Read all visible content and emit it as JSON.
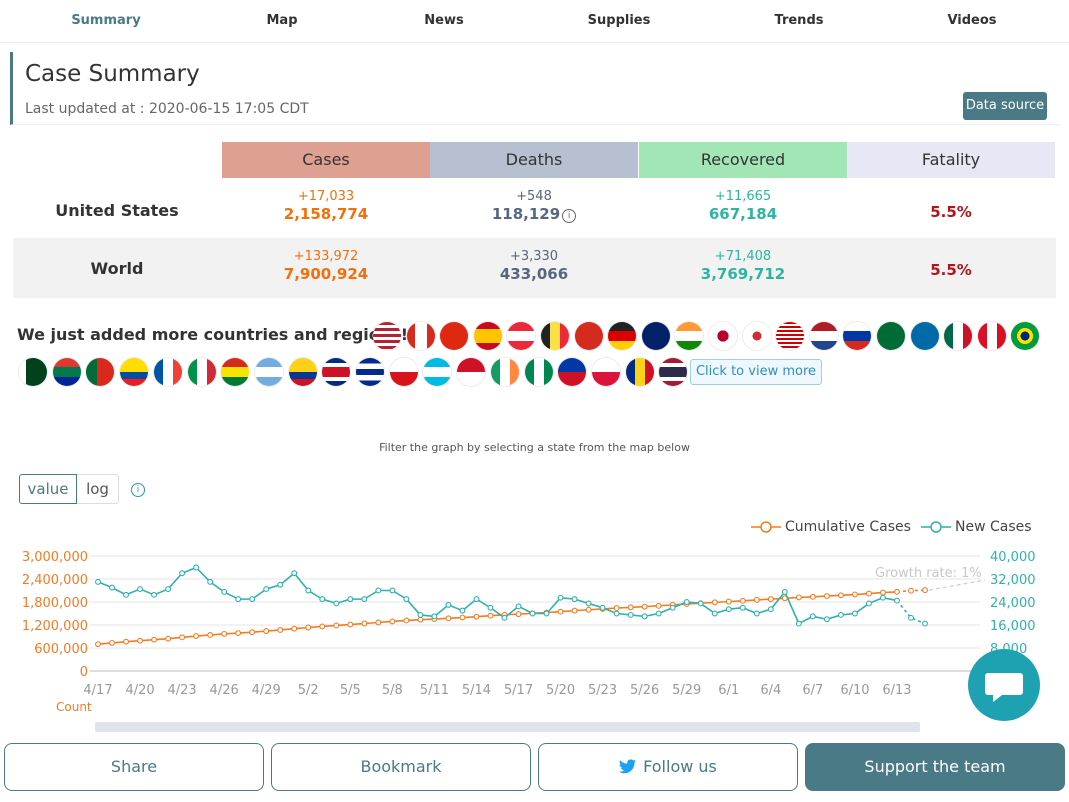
{
  "nav": {
    "items": [
      {
        "label": "Summary",
        "active": true
      },
      {
        "label": "Map"
      },
      {
        "label": "News"
      },
      {
        "label": "Supplies"
      },
      {
        "label": "Trends"
      },
      {
        "label": "Videos"
      }
    ]
  },
  "summary": {
    "title": "Case Summary",
    "last_updated": "Last updated at : 2020-06-15 17:05 CDT",
    "data_source_label": "Data source"
  },
  "table": {
    "headers": {
      "cases": "Cases",
      "deaths": "Deaths",
      "recovered": "Recovered",
      "fatality": "Fatality"
    },
    "header_colors": {
      "cases": "#dda091",
      "deaths": "#b6c0d0",
      "recovered": "#a3e6b5",
      "fatality": "#e6e9f5"
    },
    "rows": [
      {
        "label": "United States",
        "cases_delta": "+17,033",
        "cases_total": "2,158,774",
        "deaths_delta": "+548",
        "deaths_total": "118,129",
        "recovered_delta": "+11,665",
        "recovered_total": "667,184",
        "fatality": "5.5%"
      },
      {
        "label": "World",
        "cases_delta": "+133,972",
        "cases_total": "7,900,924",
        "deaths_delta": "+3,330",
        "deaths_total": "433,066",
        "recovered_delta": "+71,408",
        "recovered_total": "3,769,712",
        "fatality": "5.5%"
      }
    ]
  },
  "countries": {
    "text": "We just added more countries and regions!",
    "view_more_label": "Click to view more",
    "flags": [
      "us",
      "canada",
      "china",
      "spain",
      "austria",
      "belgium",
      "switzerland",
      "germany",
      "uk",
      "india",
      "japan",
      "south-korea",
      "malaysia",
      "netherlands",
      "russia",
      "saudi-arabia",
      "sweden",
      "mexico",
      "peru",
      "brazil",
      "pakistan",
      "south-africa",
      "portugal",
      "ecuador",
      "france",
      "italy",
      "bolivia",
      "argentina",
      "colombia",
      "costa-rica",
      "cuba",
      "czechia",
      "honduras",
      "indonesia",
      "ireland",
      "nigeria",
      "philippines",
      "poland",
      "romania",
      "thailand"
    ]
  },
  "chart": {
    "filter_note": "Filter the graph by selecting a state from the map below",
    "toggle_value": "value",
    "toggle_log": "log",
    "x_unit": "Count",
    "growth_rate_label": "Growth rate: 1%",
    "colors": {
      "cumulative": "#f37b22",
      "new": "#2fb1ad"
    }
  },
  "chart_data": {
    "type": "line",
    "x": [
      "4/17",
      "4/18",
      "4/19",
      "4/20",
      "4/21",
      "4/22",
      "4/23",
      "4/24",
      "4/25",
      "4/26",
      "4/27",
      "4/28",
      "4/29",
      "4/30",
      "5/1",
      "5/2",
      "5/3",
      "5/4",
      "5/5",
      "5/6",
      "5/7",
      "5/8",
      "5/9",
      "5/10",
      "5/11",
      "5/12",
      "5/13",
      "5/14",
      "5/15",
      "5/16",
      "5/17",
      "5/18",
      "5/19",
      "5/20",
      "5/21",
      "5/22",
      "5/23",
      "5/24",
      "5/25",
      "5/26",
      "5/27",
      "5/28",
      "5/29",
      "5/30",
      "5/31",
      "6/1",
      "6/2",
      "6/3",
      "6/4",
      "6/5",
      "6/6",
      "6/7",
      "6/8",
      "6/9",
      "6/10",
      "6/11",
      "6/12",
      "6/13",
      "6/14",
      "6/15"
    ],
    "x_ticks": [
      "4/17",
      "4/20",
      "4/23",
      "4/26",
      "4/29",
      "5/2",
      "5/5",
      "5/8",
      "5/11",
      "5/14",
      "5/17",
      "5/20",
      "5/23",
      "5/26",
      "5/29",
      "6/1",
      "6/4",
      "6/7",
      "6/10",
      "6/13"
    ],
    "series": [
      {
        "name": "Cumulative Cases",
        "axis": "left",
        "values": [
          700000,
          733000,
          765000,
          791000,
          817000,
          843000,
          878000,
          912000,
          940000,
          968000,
          990000,
          1013000,
          1040000,
          1070000,
          1105000,
          1135000,
          1163000,
          1188000,
          1212000,
          1239000,
          1265000,
          1293000,
          1319000,
          1339000,
          1356000,
          1374000,
          1395000,
          1417000,
          1442000,
          1466000,
          1484000,
          1505000,
          1525000,
          1547000,
          1575000,
          1598000,
          1620000,
          1641000,
          1660000,
          1679000,
          1700000,
          1725000,
          1750000,
          1770000,
          1790000,
          1810000,
          1830000,
          1855000,
          1875000,
          1897000,
          1920000,
          1935000,
          1955000,
          1975000,
          1995000,
          2020000,
          2045000,
          2065000,
          2095000,
          2110000
        ]
      },
      {
        "name": "New Cases",
        "axis": "right",
        "values": [
          31000,
          29000,
          26500,
          28500,
          26500,
          28500,
          34000,
          36000,
          31000,
          27500,
          25000,
          25000,
          28500,
          30000,
          34000,
          28000,
          25000,
          23500,
          25000,
          25000,
          28000,
          28000,
          25000,
          19500,
          19000,
          23000,
          21000,
          25000,
          22000,
          18500,
          22500,
          20000,
          20000,
          25500,
          25000,
          23500,
          22000,
          20000,
          19500,
          19000,
          20000,
          22000,
          24000,
          23500,
          20000,
          21500,
          22000,
          20000,
          21500,
          27500,
          16500,
          19000,
          18000,
          19500,
          20000,
          23500,
          25500,
          24500,
          18500,
          16500
        ]
      }
    ],
    "ylim_left": [
      0,
      3000000
    ],
    "ylim_right": [
      0,
      40000
    ],
    "y_ticks_left": [
      "0",
      "600,000",
      "1,200,000",
      "1,800,000",
      "2,400,000",
      "3,000,000"
    ],
    "y_ticks_right": [
      "8,000",
      "16,000",
      "24,000",
      "32,000",
      "40,000"
    ],
    "grid": true,
    "legend": "top-right"
  },
  "bottom": {
    "share": "Share",
    "bookmark": "Bookmark",
    "follow": "Follow us",
    "support": "Support the team"
  }
}
